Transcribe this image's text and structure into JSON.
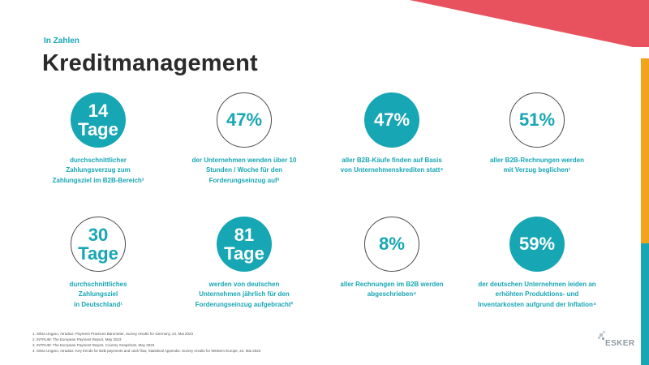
{
  "header": {
    "eyebrow": "In Zahlen",
    "title": "Kreditmanagement"
  },
  "stats": [
    {
      "value_line1": "14",
      "value_line2": "Tage",
      "style": "filled",
      "desc": [
        "durchschnittlicher",
        "Zahlungsverzug  zum",
        "Zahlungsziel im B2B-Bereich³"
      ]
    },
    {
      "value_line1": "47%",
      "value_line2": "",
      "style": "outline",
      "desc": [
        "der Unternehmen wenden über 10",
        "Stunden / Woche für den",
        "Forderungseinzug auf³"
      ]
    },
    {
      "value_line1": "47%",
      "value_line2": "",
      "style": "filled",
      "desc": [
        "aller B2B-Käufe finden auf Basis",
        "von Unternehmenskrediten statt⁴",
        ""
      ]
    },
    {
      "value_line1": "51%",
      "value_line2": "",
      "style": "outline",
      "desc": [
        "aller B2B-Rechnungen  werden",
        "mit Verzug beglichen¹",
        ""
      ]
    },
    {
      "value_line1": "30",
      "value_line2": "Tage",
      "style": "outline",
      "desc": [
        "durchschnittliches",
        "Zahlungsziel",
        "in Deutschland¹"
      ]
    },
    {
      "value_line1": "81",
      "value_line2": "Tage",
      "style": "filled",
      "desc": [
        "werden von deutschen",
        "Unternehmen jährlich für den",
        "Forderungseinzug aufgebracht²"
      ]
    },
    {
      "value_line1": "8%",
      "value_line2": "",
      "style": "outline",
      "desc": [
        "aller Rechnungen im B2B  werden",
        "abgeschrieben⁴",
        ""
      ]
    },
    {
      "value_line1": "59%",
      "value_line2": "",
      "style": "filled",
      "desc": [
        "der deutschen  Unternehmen leiden an",
        "erhöhten Produktions-  und",
        "Inventarkosten  aufgrund der Inflation⁴"
      ]
    }
  ],
  "footnotes": [
    "1. Silvia Ungaro, Atradius: Payment Practices Barometer, Survey results for Germany, 24. Mai 2023",
    "2. INTRUM: The European  Payment Report, May 2023",
    "3. INTRUM: The European  Payment Report, Country Snapshots,  May 2023",
    "4. Silvia Ungaro, Atradius: Key trends for B2B payments  and cash flow, Statistical Appendix: Survey results for Western Europe, 24. Mai 2023"
  ],
  "logo": {
    "text": "ESKER"
  },
  "colors": {
    "accent": "#17a6b4",
    "title": "#2b2b2b",
    "deco_red": "#e8525f",
    "deco_orange": "#f2a31c",
    "deco_teal": "#17a6b4"
  }
}
